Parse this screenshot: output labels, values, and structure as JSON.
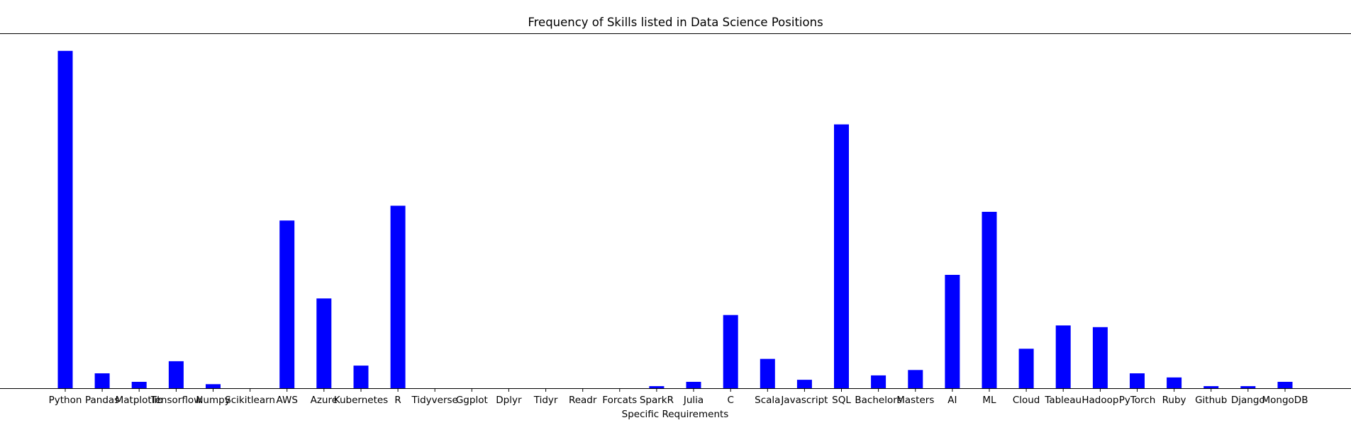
{
  "chart_data": {
    "type": "bar",
    "title": "Frequency of Skills listed in Data Science Positions",
    "xlabel": "Specific Requirements",
    "ylabel": "",
    "categories": [
      "Python",
      "Pandas",
      "Matplotlib",
      "Tensorflow",
      "Numpy",
      "Scikitlearn",
      "AWS",
      "Azure",
      "Kubernetes",
      "R",
      "Tidyverse",
      "Ggplot",
      "Dplyr",
      "Tidyr",
      "Readr",
      "Forcats",
      "SparkR",
      "Julia",
      "C",
      "Scala",
      "Javascript",
      "SQL",
      "Bachelors",
      "Masters",
      "AI",
      "ML",
      "Cloud",
      "Tableau",
      "Hadoop",
      "PyTorch",
      "Ruby",
      "Github",
      "Django",
      "MongoDB"
    ],
    "values": [
      1000,
      44,
      19,
      80,
      12,
      0,
      497,
      266,
      67,
      541,
      0,
      0,
      0,
      0,
      0,
      0,
      6,
      19,
      217,
      87,
      25,
      782,
      38,
      54,
      336,
      523,
      117,
      186,
      181,
      44,
      32,
      6,
      6,
      19
    ],
    "ylim": [
      0,
      1050
    ],
    "y_ticks_shown": false,
    "grid": false,
    "bar_color": "#0000ff"
  }
}
